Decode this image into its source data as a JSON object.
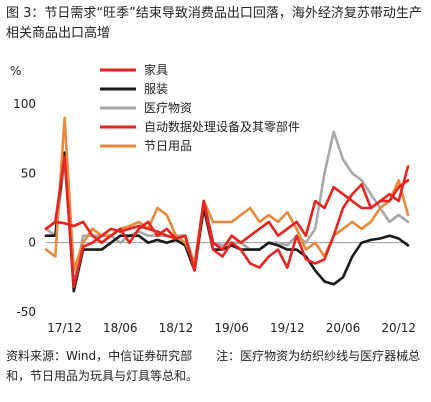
{
  "figure": {
    "title": "图 3：节日需求“旺季”结束导致消费品出口回落，海外经济复苏带动生产相关商品出口高增",
    "unit": "%",
    "source_note": "资料来源：Wind，中信证券研究部　　注：医疗物资为纺织纱线与医疗器械总和，节日用品为玩具与灯具等总和。"
  },
  "chart_data": {
    "type": "line",
    "title": "",
    "xlabel": "",
    "ylabel": "%",
    "ylim": [
      -50,
      100
    ],
    "yticks": [
      100,
      50,
      0,
      -50
    ],
    "xtick_labels": [
      "17/12",
      "18/06",
      "18/12",
      "19/06",
      "19/12",
      "20/06",
      "20/12"
    ],
    "legend_position": "top-center",
    "x": [
      "17/10",
      "17/11",
      "17/12",
      "18/01",
      "18/02",
      "18/03",
      "18/04",
      "18/05",
      "18/06",
      "18/07",
      "18/08",
      "18/09",
      "18/10",
      "18/11",
      "18/12",
      "19/01",
      "19/02",
      "19/03",
      "19/04",
      "19/05",
      "19/06",
      "19/07",
      "19/08",
      "19/09",
      "19/10",
      "19/11",
      "19/12",
      "20/01",
      "20/02",
      "20/03",
      "20/04",
      "20/05",
      "20/06",
      "20/07",
      "20/08",
      "20/09",
      "20/10",
      "20/11",
      "20/12",
      "21/01"
    ],
    "series": [
      {
        "name": "家具",
        "color": "#e52521",
        "values": [
          10,
          15,
          62,
          -32,
          -3,
          0,
          5,
          10,
          8,
          10,
          12,
          10,
          8,
          5,
          3,
          5,
          -20,
          30,
          -5,
          -10,
          0,
          -5,
          -15,
          -18,
          -10,
          -5,
          -18,
          5,
          -12,
          -15,
          -12,
          5,
          25,
          35,
          42,
          25,
          30,
          35,
          30,
          55
        ]
      },
      {
        "name": "服装",
        "color": "#1a1a1a",
        "values": [
          5,
          5,
          65,
          -35,
          -5,
          -5,
          -5,
          0,
          5,
          5,
          5,
          0,
          2,
          0,
          2,
          -2,
          -20,
          25,
          -5,
          -5,
          -2,
          -5,
          -5,
          -5,
          0,
          -2,
          -5,
          -5,
          -10,
          -20,
          -28,
          -30,
          -25,
          -10,
          0,
          2,
          3,
          5,
          3,
          -2
        ]
      },
      {
        "name": "医疗物资",
        "color": "#a8a8a8",
        "values": [
          10,
          5,
          60,
          -30,
          5,
          5,
          5,
          5,
          0,
          5,
          8,
          5,
          5,
          5,
          5,
          5,
          -15,
          30,
          0,
          -2,
          0,
          0,
          -5,
          -5,
          0,
          0,
          -2,
          5,
          0,
          10,
          50,
          80,
          60,
          50,
          45,
          35,
          25,
          15,
          20,
          15
        ]
      },
      {
        "name": "自动数据处理设备及其零部件",
        "color": "#e8231c",
        "values": [
          10,
          15,
          14,
          12,
          15,
          5,
          0,
          5,
          10,
          0,
          10,
          15,
          5,
          10,
          3,
          5,
          -20,
          30,
          0,
          -5,
          5,
          0,
          5,
          10,
          15,
          5,
          10,
          15,
          5,
          30,
          25,
          40,
          35,
          30,
          25,
          25,
          30,
          30,
          40,
          45
        ]
      },
      {
        "name": "节日用品",
        "color": "#e8893c",
        "values": [
          -5,
          -10,
          90,
          -20,
          0,
          10,
          5,
          5,
          10,
          12,
          15,
          10,
          25,
          20,
          5,
          0,
          -15,
          30,
          15,
          15,
          15,
          20,
          25,
          15,
          20,
          15,
          22,
          10,
          -5,
          0,
          -10,
          5,
          10,
          15,
          10,
          15,
          25,
          30,
          45,
          20
        ]
      }
    ]
  }
}
